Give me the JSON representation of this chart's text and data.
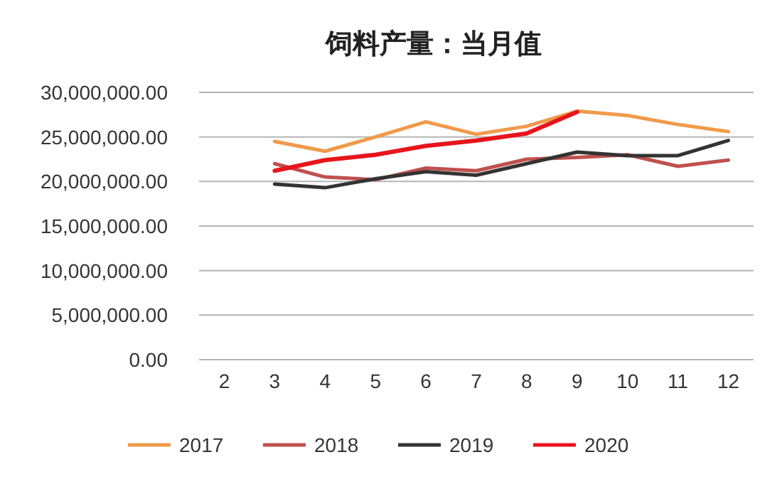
{
  "chart_data": {
    "type": "line",
    "title": "饲料产量：当月值",
    "categories": [
      "2",
      "3",
      "4",
      "5",
      "6",
      "7",
      "8",
      "9",
      "10",
      "11",
      "12"
    ],
    "series": [
      {
        "name": "2017",
        "color": "#f09a4a",
        "values": [
          null,
          24500000.0,
          23400000.0,
          25000000.0,
          26700000.0,
          25300000.0,
          26200000.0,
          27900000.0,
          27400000.0,
          26400000.0,
          25600000.0
        ]
      },
      {
        "name": "2018",
        "color": "#c0504d",
        "values": [
          null,
          22000000.0,
          20500000.0,
          20200000.0,
          21500000.0,
          21200000.0,
          22500000.0,
          22700000.0,
          23000000.0,
          21700000.0,
          22400000.0
        ]
      },
      {
        "name": "2019",
        "color": "#333333",
        "values": [
          null,
          19700000.0,
          19300000.0,
          20300000.0,
          21100000.0,
          20700000.0,
          22000000.0,
          23300000.0,
          22900000.0,
          22900000.0,
          24600000.0
        ]
      },
      {
        "name": "2020",
        "color": "#e8141c",
        "values": [
          null,
          21200000.0,
          22400000.0,
          23000000.0,
          24000000.0,
          24600000.0,
          25400000.0,
          27800000.0,
          null,
          null,
          null
        ]
      }
    ],
    "ylim": [
      0,
      30000000
    ],
    "yticks": [
      {
        "value": 0,
        "label": "0.00"
      },
      {
        "value": 5000000,
        "label": "5,000,000.00"
      },
      {
        "value": 10000000,
        "label": "10,000,000.00"
      },
      {
        "value": 15000000,
        "label": "15,000,000.00"
      },
      {
        "value": 20000000,
        "label": "20,000,000.00"
      },
      {
        "value": 25000000,
        "label": "25,000,000.00"
      },
      {
        "value": 30000000,
        "label": "30,000,000.00"
      }
    ],
    "grid": "y",
    "legend": "bottom",
    "marker": "none",
    "line_style": "solid"
  }
}
